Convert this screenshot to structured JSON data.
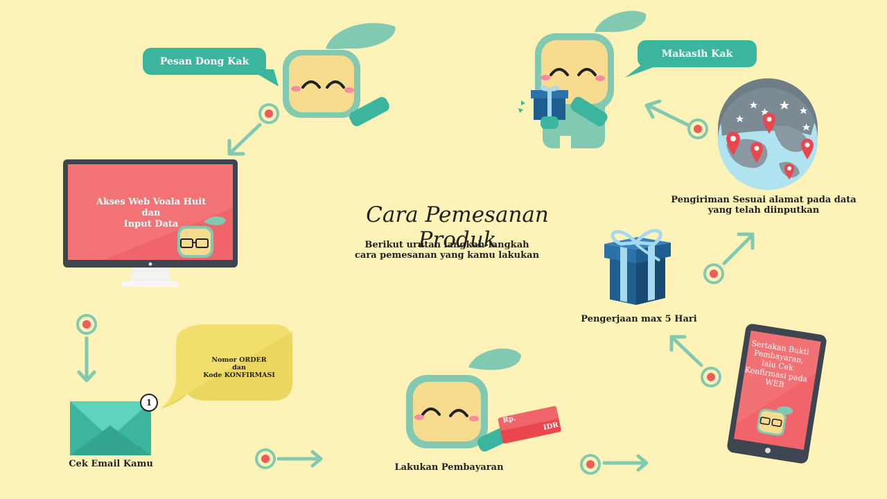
{
  "title": "Cara Pemesanan Produk",
  "subtitle_line1": "Berikut urutan langkah-langkah",
  "subtitle_line2": "cara pemesanan yang kamu lakukan",
  "bubble_order": "Pesan Dong Kak",
  "bubble_thanks": "Makasih Kak",
  "screen_line1": "Akses Web Voala Huit",
  "screen_line2": "dan",
  "screen_line3": "Input Data",
  "note_line1": "Nomor ORDER",
  "note_line2": "dan",
  "note_line3": "Kode KONFIRMASI",
  "mail_badge": "1",
  "label_email": "Cek Email Kamu",
  "card_rp": "Rp.",
  "card_idr": "IDR",
  "label_payment": "Lakukan Pembayaran",
  "tablet_text": "Sertakan Bukti Pembayaran, lalu Cek Konfirmasi pada WEB",
  "label_work": "Pengerjaan max 5 Hari",
  "label_ship_line1": "Pengiriman Sesuai alamat pada data",
  "label_ship_line2": "yang telah diinputkan",
  "colors": {
    "background": "#fdf2b7",
    "teal": "#3cb59e",
    "mint": "#82c9b2",
    "face": "#f7dc8f",
    "coral": "#ee5b5b",
    "navy": "#1f5f8f"
  }
}
